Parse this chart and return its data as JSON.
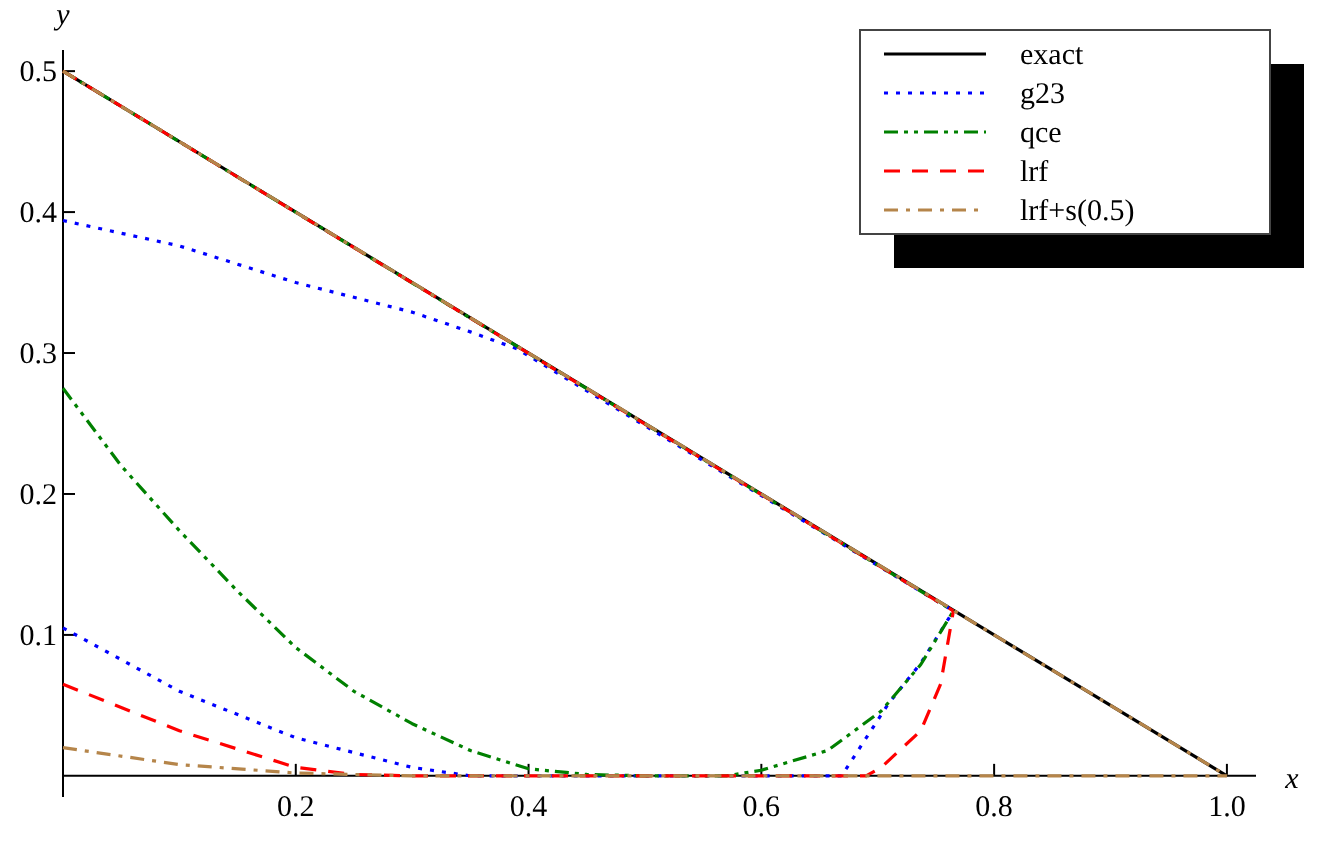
{
  "chart_data": {
    "type": "line",
    "xlabel": "x",
    "ylabel": "y",
    "xlim": [
      0,
      1.025
    ],
    "ylim": [
      -0.015,
      0.515
    ],
    "xticks": [
      0.2,
      0.4,
      0.6,
      0.8,
      {
        "value": 1,
        "label": "1.0"
      }
    ],
    "yticks": [
      0.1,
      0.2,
      0.3,
      0.4,
      0.5
    ],
    "legend": "top right",
    "grid": false,
    "series": [
      {
        "name": "exact",
        "color": "#000000",
        "line_style": "solid",
        "x": [
          0,
          1
        ],
        "values": [
          0.5,
          0
        ]
      },
      {
        "name": "g23",
        "color": "#0000ff",
        "line_style": "dotted",
        "x": [
          0,
          0.1,
          0.2,
          0.3,
          0.35,
          0.39,
          0.765
        ],
        "values": [
          0.394,
          0.376,
          0.35,
          0.329,
          0.315,
          0.303,
          0.117
        ]
      },
      {
        "color": "#0000ff",
        "line_style": "dotted",
        "x": [
          0,
          0.1,
          0.2,
          0.3,
          0.35,
          0.5,
          0.669,
          0.709,
          0.737,
          0.765
        ],
        "values": [
          0.105,
          0.06,
          0.027,
          0.006,
          0,
          0,
          0,
          0.051,
          0.08,
          0.117
        ]
      },
      {
        "name": "qce",
        "color": "#008000",
        "line_style": "dashdotdot",
        "x": [
          0,
          0.765
        ],
        "values": [
          0.5,
          0.117
        ]
      },
      {
        "color": "#008000",
        "line_style": "dashdotdot",
        "x": [
          0,
          0.05,
          0.1,
          0.15,
          0.2,
          0.25,
          0.3,
          0.35,
          0.4,
          0.45,
          0.5,
          0.57,
          0.6,
          0.657,
          0.703,
          0.737,
          0.765
        ],
        "values": [
          0.275,
          0.22,
          0.174,
          0.131,
          0.091,
          0.06,
          0.037,
          0.018,
          0.005,
          0.001,
          0,
          0,
          0.004,
          0.018,
          0.046,
          0.079,
          0.117
        ]
      },
      {
        "name": "lrf",
        "color": "#ff0000",
        "line_style": "dashed",
        "x": [
          0,
          0.765
        ],
        "values": [
          0.5,
          0.117
        ]
      },
      {
        "color": "#ff0000",
        "line_style": "dashed",
        "x": [
          0,
          0.1,
          0.2,
          0.25,
          0.3,
          0.5,
          0.69,
          0.703,
          0.737,
          0.754,
          0.765
        ],
        "values": [
          0.065,
          0.032,
          0.006,
          0.001,
          0,
          0,
          0,
          0.006,
          0.032,
          0.065,
          0.117
        ]
      },
      {
        "name": "lrf+s(0.5)",
        "color": "#b5854a",
        "line_style": "dashdot",
        "x": [
          0,
          1
        ],
        "values": [
          0.5,
          0
        ]
      },
      {
        "color": "#b5854a",
        "line_style": "dashdot",
        "x": [
          0,
          0.1,
          0.2,
          0.3,
          1
        ],
        "values": [
          0.02,
          0.008,
          0.002,
          0,
          0
        ]
      }
    ]
  }
}
